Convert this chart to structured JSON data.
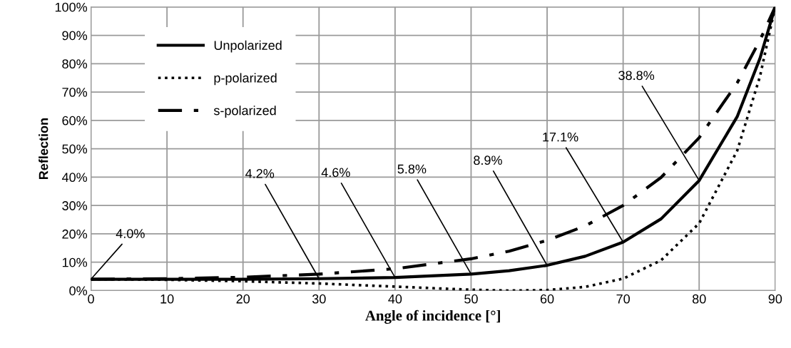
{
  "chart_data": {
    "type": "line",
    "xlabel": "Angle of incidence [°]",
    "ylabel": "Reflection",
    "x": [
      0,
      10,
      20,
      30,
      40,
      50,
      55,
      60,
      65,
      70,
      75,
      80,
      85,
      88,
      90
    ],
    "series": [
      {
        "name": "Unpolarized",
        "color": "#000000",
        "line_style": "solid",
        "values": [
          4.0,
          4.0,
          4.0,
          4.2,
          4.6,
          5.8,
          7.0,
          8.9,
          12.1,
          17.1,
          25.3,
          38.8,
          61.3,
          81.9,
          100
        ]
      },
      {
        "name": "p-polarized",
        "color": "#000000",
        "line_style": "dotted",
        "values": [
          4.0,
          3.8,
          3.3,
          2.5,
          1.4,
          0.3,
          0.0,
          0.2,
          1.3,
          4.2,
          10.7,
          23.7,
          49.3,
          75.5,
          100
        ]
      },
      {
        "name": "s-polarized",
        "color": "#000000",
        "line_style": "dashed",
        "values": [
          4.0,
          4.2,
          4.7,
          5.8,
          7.7,
          11.2,
          13.9,
          17.7,
          22.8,
          30.0,
          39.9,
          53.9,
          73.2,
          88.3,
          100
        ]
      }
    ],
    "xlim": [
      0,
      90
    ],
    "xticks": [
      0,
      10,
      20,
      30,
      40,
      50,
      60,
      70,
      80,
      90
    ],
    "ylim": [
      0,
      100
    ],
    "yticks": [
      {
        "value": 0,
        "label": "0%"
      },
      {
        "value": 10,
        "label": "10%"
      },
      {
        "value": 20,
        "label": "20%"
      },
      {
        "value": 30,
        "label": "30%"
      },
      {
        "value": 40,
        "label": "40%"
      },
      {
        "value": 50,
        "label": "50%"
      },
      {
        "value": 60,
        "label": "60%"
      },
      {
        "value": 70,
        "label": "70%"
      },
      {
        "value": 80,
        "label": "80%"
      },
      {
        "value": 90,
        "label": "90%"
      },
      {
        "value": 100,
        "label": "100%"
      }
    ],
    "grid": true,
    "legend": "top left",
    "marker": "none",
    "annotations": [
      {
        "text": "4.0%",
        "x": 0,
        "y": 4.0
      },
      {
        "text": "4.2%",
        "x": 30,
        "y": 4.2
      },
      {
        "text": "4.6%",
        "x": 40,
        "y": 4.6
      },
      {
        "text": "5.8%",
        "x": 50,
        "y": 5.8
      },
      {
        "text": "8.9%",
        "x": 60,
        "y": 8.9
      },
      {
        "text": "17.1%",
        "x": 70,
        "y": 17.1
      },
      {
        "text": "38.8%",
        "x": 80,
        "y": 38.8
      }
    ]
  }
}
